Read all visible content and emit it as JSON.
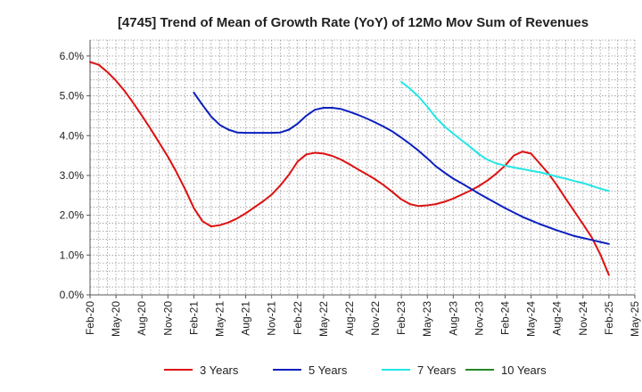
{
  "chart_data": {
    "type": "line",
    "title": "[4745]  Trend of Mean of Growth Rate (YoY) of 12Mo Mov Sum of Revenues",
    "xlabel": "",
    "ylabel": "",
    "ylim": [
      0,
      6.4
    ],
    "yticks": [
      0,
      1,
      2,
      3,
      4,
      5,
      6
    ],
    "ytick_labels": [
      "0.0%",
      "1.0%",
      "2.0%",
      "3.0%",
      "4.0%",
      "5.0%",
      "6.0%"
    ],
    "xlim": [
      0,
      63
    ],
    "xtick_positions": [
      0,
      3,
      6,
      9,
      12,
      15,
      18,
      21,
      24,
      27,
      30,
      33,
      36,
      39,
      42,
      45,
      48,
      51,
      54,
      57,
      60,
      63
    ],
    "xtick_labels": [
      "Feb-20",
      "May-20",
      "Aug-20",
      "Nov-20",
      "Feb-21",
      "May-21",
      "Aug-21",
      "Nov-21",
      "Feb-22",
      "May-22",
      "Aug-22",
      "Nov-22",
      "Feb-23",
      "May-23",
      "Aug-23",
      "Nov-23",
      "Feb-24",
      "May-24",
      "Aug-24",
      "Nov-24",
      "Feb-25",
      "May-25"
    ],
    "grid": true,
    "legend_position": "bottom",
    "series": [
      {
        "name": "3 Years",
        "color": "#dd1111",
        "x": [
          0,
          1,
          2,
          3,
          4,
          5,
          6,
          7,
          8,
          9,
          10,
          11,
          12,
          13,
          14,
          15,
          16,
          17,
          18,
          19,
          20,
          21,
          22,
          23,
          24,
          25,
          26,
          27,
          28,
          29,
          30,
          31,
          32,
          33,
          34,
          35,
          36,
          37,
          38,
          39,
          40,
          41,
          42,
          43,
          44,
          45,
          46,
          47,
          48,
          49,
          50,
          51,
          52,
          53,
          54,
          55,
          56,
          57,
          58,
          59,
          60
        ],
        "values": [
          5.85,
          5.78,
          5.6,
          5.38,
          5.12,
          4.82,
          4.5,
          4.17,
          3.82,
          3.47,
          3.08,
          2.65,
          2.18,
          1.85,
          1.72,
          1.75,
          1.82,
          1.92,
          2.05,
          2.2,
          2.35,
          2.52,
          2.75,
          3.02,
          3.35,
          3.53,
          3.57,
          3.55,
          3.49,
          3.4,
          3.28,
          3.15,
          3.03,
          2.9,
          2.75,
          2.58,
          2.4,
          2.28,
          2.23,
          2.25,
          2.28,
          2.34,
          2.42,
          2.52,
          2.62,
          2.74,
          2.88,
          3.05,
          3.25,
          3.5,
          3.6,
          3.55,
          3.3,
          3.05,
          2.75,
          2.42,
          2.1,
          1.78,
          1.45,
          1.02,
          0.5
        ]
      },
      {
        "name": "5 Years",
        "color": "#0b1fbf",
        "x": [
          12,
          13,
          14,
          15,
          16,
          17,
          18,
          19,
          20,
          21,
          22,
          23,
          24,
          25,
          26,
          27,
          28,
          29,
          30,
          31,
          32,
          33,
          34,
          35,
          36,
          37,
          38,
          39,
          40,
          41,
          42,
          43,
          44,
          45,
          46,
          47,
          48,
          49,
          50,
          51,
          52,
          53,
          54,
          55,
          56,
          57,
          58,
          59,
          60
        ],
        "values": [
          5.08,
          4.77,
          4.48,
          4.27,
          4.15,
          4.08,
          4.07,
          4.07,
          4.07,
          4.07,
          4.08,
          4.15,
          4.3,
          4.5,
          4.65,
          4.7,
          4.7,
          4.67,
          4.6,
          4.52,
          4.43,
          4.33,
          4.22,
          4.1,
          3.95,
          3.79,
          3.62,
          3.43,
          3.23,
          3.07,
          2.92,
          2.8,
          2.67,
          2.54,
          2.42,
          2.3,
          2.18,
          2.07,
          1.96,
          1.87,
          1.78,
          1.7,
          1.62,
          1.55,
          1.48,
          1.43,
          1.38,
          1.33,
          1.28
        ]
      },
      {
        "name": "7 Years",
        "color": "#22e6e6",
        "x": [
          36,
          37,
          38,
          39,
          40,
          41,
          42,
          43,
          44,
          45,
          46,
          47,
          48,
          49,
          50,
          51,
          52,
          53,
          54,
          55,
          56,
          57,
          58,
          59,
          60
        ],
        "values": [
          5.35,
          5.18,
          4.98,
          4.73,
          4.45,
          4.23,
          4.05,
          3.88,
          3.71,
          3.53,
          3.39,
          3.3,
          3.25,
          3.2,
          3.16,
          3.12,
          3.08,
          3.03,
          2.97,
          2.92,
          2.86,
          2.81,
          2.74,
          2.67,
          2.61
        ]
      },
      {
        "name": "10 Years",
        "color": "#228822",
        "x": [],
        "values": []
      }
    ]
  }
}
